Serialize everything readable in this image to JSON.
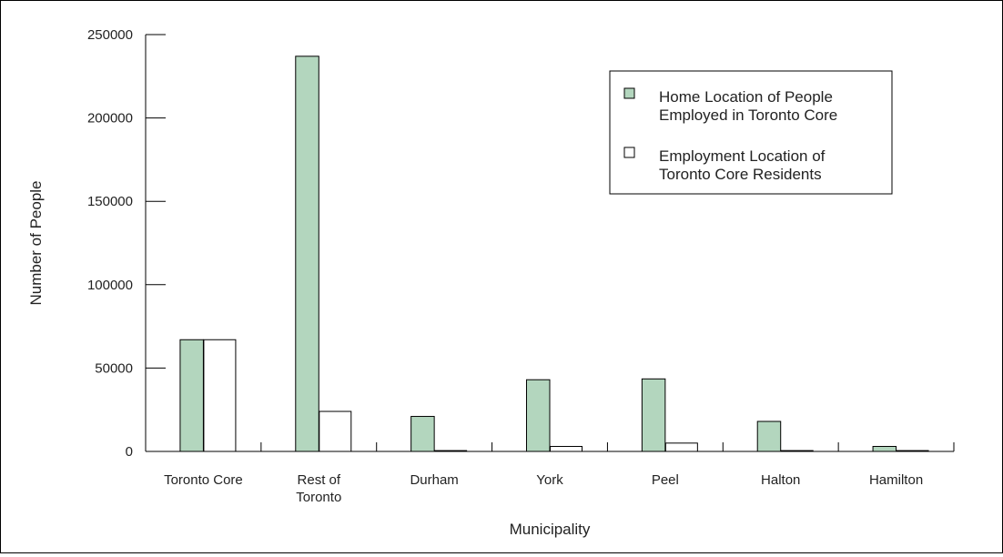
{
  "chart_data": {
    "type": "bar",
    "title": "",
    "xlabel": "Municipality",
    "ylabel": "Number of People",
    "ylim": [
      0,
      250000
    ],
    "yticks": [
      "0",
      "50000",
      "100000",
      "150000",
      "200000",
      "250000"
    ],
    "categories": [
      "Toronto Core",
      "Rest of Toronto",
      "Durham",
      "York",
      "Peel",
      "Halton",
      "Hamilton"
    ],
    "category_lines": [
      [
        "Toronto Core"
      ],
      [
        "Rest of",
        "Toronto"
      ],
      [
        "Durham"
      ],
      [
        "York"
      ],
      [
        "Peel"
      ],
      [
        "Halton"
      ],
      [
        "Hamilton"
      ]
    ],
    "series": [
      {
        "name": "Home Location of People Employed in Toronto Core",
        "name_lines": [
          "Home Location of People",
          "Employed in Toronto Core"
        ],
        "color": "#b3d6be",
        "values": [
          67000,
          237000,
          21000,
          43000,
          43500,
          18000,
          3000
        ]
      },
      {
        "name": "Employment Location of Toronto Core Residents",
        "name_lines": [
          "Employment Location of",
          "Toronto Core Residents"
        ],
        "color": "#ffffff",
        "values": [
          67000,
          24000,
          500,
          3000,
          5000,
          500,
          500
        ]
      }
    ],
    "grid": false,
    "legend_position": "top-right"
  }
}
